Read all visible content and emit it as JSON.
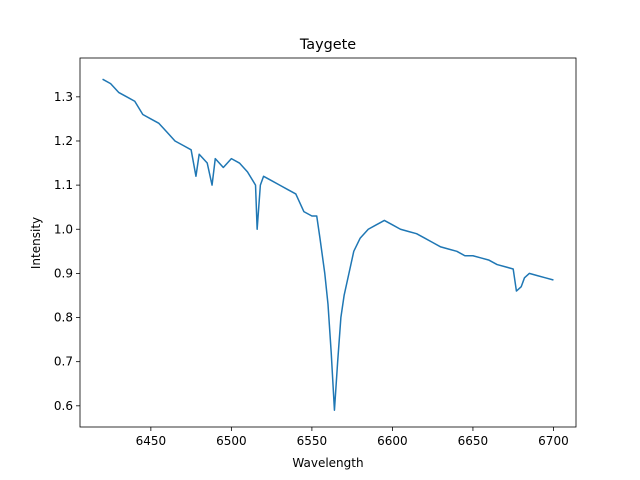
{
  "chart_data": {
    "type": "line",
    "title": "Taygete",
    "xlabel": "Wavelength",
    "ylabel": "Intensity",
    "x": [
      6420,
      6425,
      6430,
      6435,
      6440,
      6445,
      6450,
      6455,
      6460,
      6465,
      6470,
      6475,
      6478,
      6480,
      6485,
      6488,
      6490,
      6495,
      6500,
      6505,
      6510,
      6515,
      6516,
      6518,
      6520,
      6525,
      6530,
      6535,
      6540,
      6545,
      6550,
      6553,
      6555,
      6558,
      6560,
      6562,
      6564,
      6566,
      6568,
      6570,
      6573,
      6576,
      6580,
      6585,
      6590,
      6595,
      6600,
      6605,
      6610,
      6615,
      6620,
      6625,
      6630,
      6635,
      6640,
      6645,
      6650,
      6655,
      6660,
      6665,
      6670,
      6675,
      6677,
      6680,
      6682,
      6685,
      6690,
      6695,
      6700
    ],
    "series": [
      {
        "name": "Taygete",
        "color": "#1f77b4",
        "values": [
          1.34,
          1.33,
          1.31,
          1.3,
          1.29,
          1.26,
          1.25,
          1.24,
          1.22,
          1.2,
          1.19,
          1.18,
          1.12,
          1.17,
          1.15,
          1.1,
          1.16,
          1.14,
          1.16,
          1.15,
          1.13,
          1.1,
          1.0,
          1.1,
          1.12,
          1.11,
          1.1,
          1.09,
          1.08,
          1.04,
          1.03,
          1.03,
          0.98,
          0.9,
          0.83,
          0.72,
          0.59,
          0.7,
          0.8,
          0.85,
          0.9,
          0.95,
          0.98,
          1.0,
          1.01,
          1.02,
          1.01,
          1.0,
          0.995,
          0.99,
          0.98,
          0.97,
          0.96,
          0.955,
          0.95,
          0.94,
          0.94,
          0.935,
          0.93,
          0.92,
          0.915,
          0.91,
          0.86,
          0.87,
          0.89,
          0.9,
          0.895,
          0.89,
          0.885
        ]
      }
    ],
    "xlim": [
      6406,
      6714
    ],
    "xticks": [
      6450,
      6500,
      6550,
      6600,
      6650,
      6700
    ],
    "ylim": [
      0.552,
      1.388
    ],
    "yticks": [
      0.6,
      0.7,
      0.8,
      0.9,
      {
        "value": 1,
        "label": "1.0"
      },
      1.1,
      1.2,
      1.3
    ],
    "grid": false
  }
}
